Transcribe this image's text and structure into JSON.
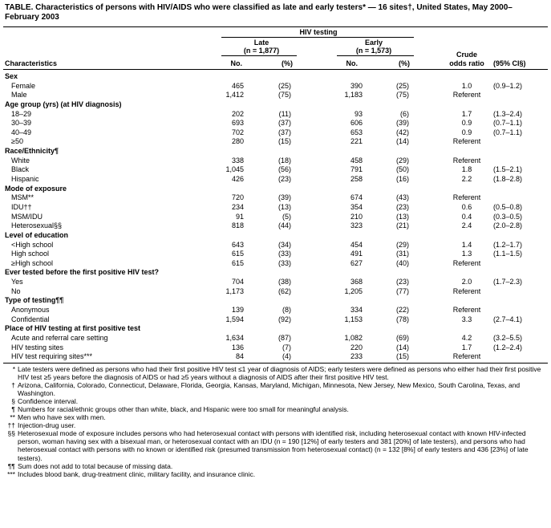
{
  "title": "TABLE. Characteristics of persons with HIV/AIDS who were classified as late and early testers* — 16 sites†, United States, May 2000–February 2003",
  "header": {
    "group": "HIV testing",
    "late": "Late",
    "late_n": "(n = 1,877)",
    "early": "Early",
    "early_n": "(n = 1,573)",
    "crude": "Crude",
    "odds_ratio": "odds ratio",
    "characteristics": "Characteristics",
    "late_no": "No.",
    "late_pct": "(%)",
    "early_no": "No.",
    "early_pct": "(%)",
    "ci": "(95% CI§)"
  },
  "sections": [
    {
      "title": "Sex",
      "rows": [
        [
          "Female",
          "465",
          "(25)",
          "390",
          "(25)",
          "1.0",
          "(0.9–1.2)"
        ],
        [
          "Male",
          "1,412",
          "(75)",
          "1,183",
          "(75)",
          "Referent"
        ]
      ]
    },
    {
      "title": "Age group (yrs) (at HIV diagnosis)",
      "rows": [
        [
          "18–29",
          "202",
          "(11)",
          "93",
          "(6)",
          "1.7",
          "(1.3–2.4)"
        ],
        [
          "30–39",
          "693",
          "(37)",
          "606",
          "(39)",
          "0.9",
          "(0.7–1.1)"
        ],
        [
          "40–49",
          "702",
          "(37)",
          "653",
          "(42)",
          "0.9",
          "(0.7–1.1)"
        ],
        [
          "≥50",
          "280",
          "(15)",
          "221",
          "(14)",
          "Referent"
        ]
      ]
    },
    {
      "title": "Race/Ethnicity¶",
      "rows": [
        [
          "White",
          "338",
          "(18)",
          "458",
          "(29)",
          "Referent"
        ],
        [
          "Black",
          "1,045",
          "(56)",
          "791",
          "(50)",
          "1.8",
          "(1.5–2.1)"
        ],
        [
          "Hispanic",
          "426",
          "(23)",
          "258",
          "(16)",
          "2.2",
          "(1.8–2.8)"
        ]
      ]
    },
    {
      "title": "Mode of exposure",
      "rows": [
        [
          "MSM**",
          "720",
          "(39)",
          "674",
          "(43)",
          "Referent"
        ],
        [
          "IDU††",
          "234",
          "(13)",
          "354",
          "(23)",
          "0.6",
          "(0.5–0.8)"
        ],
        [
          "MSM/IDU",
          "91",
          "(5)",
          "210",
          "(13)",
          "0.4",
          "(0.3–0.5)"
        ],
        [
          "Heterosexual§§",
          "818",
          "(44)",
          "323",
          "(21)",
          "2.4",
          "(2.0–2.8)"
        ]
      ]
    },
    {
      "title": "Level of education",
      "rows": [
        [
          "<High school",
          "643",
          "(34)",
          "454",
          "(29)",
          "1.4",
          "(1.2–1.7)"
        ],
        [
          "High school",
          "615",
          "(33)",
          "491",
          "(31)",
          "1.3",
          "(1.1–1.5)"
        ],
        [
          "≥High school",
          "615",
          "(33)",
          "627",
          "(40)",
          "Referent"
        ]
      ]
    },
    {
      "title": "Ever tested before the first positive HIV test?",
      "rows": [
        [
          "Yes",
          "704",
          "(38)",
          "368",
          "(23)",
          "2.0",
          "(1.7–2.3)"
        ],
        [
          "No",
          "1,173",
          "(62)",
          "1,205",
          "(77)",
          "Referent"
        ]
      ]
    },
    {
      "title": "Type of testing¶¶",
      "rows": [
        [
          "Anonymous",
          "139",
          "(8)",
          "334",
          "(22)",
          "Referent"
        ],
        [
          "Confidential",
          "1,594",
          "(92)",
          "1,153",
          "(78)",
          "3.3",
          "(2.7–4.1)"
        ]
      ]
    },
    {
      "title": "Place of HIV testing at first positive test",
      "rows": [
        [
          "Acute and referral care setting",
          "1,634",
          "(87)",
          "1,082",
          "(69)",
          "4.2",
          "(3.2–5.5)"
        ],
        [
          "HIV testing sites",
          "136",
          "(7)",
          "220",
          "(14)",
          "1.7",
          "(1.2–2.4)"
        ],
        [
          "HIV test requiring sites***",
          "84",
          "(4)",
          "233",
          "(15)",
          "Referent"
        ]
      ]
    }
  ],
  "footnotes": [
    [
      "*",
      "Late testers were defined as persons who had their first positive HIV test ≤1 year of diagnosis of AIDS; early testers were defined as persons who either had their first positive HIV test ≥5 years before the diagnosis of AIDS or had ≥5 years without a diagnosis of AIDS after their first positive HIV test."
    ],
    [
      "†",
      "Arizona, California, Colorado, Connecticut, Delaware, Florida, Georgia, Kansas, Maryland, Michigan, Minnesota, New Jersey, New Mexico, South Carolina, Texas, and Washington."
    ],
    [
      "§",
      "Confidence interval."
    ],
    [
      "¶",
      "Numbers for racial/ethnic groups other than white, black, and Hispanic were too small for meaningful analysis."
    ],
    [
      "**",
      "Men who have sex with men."
    ],
    [
      "††",
      "Injection-drug user."
    ],
    [
      "§§",
      "Heterosexual mode of exposure includes persons who had heterosexual contact with persons with identified risk, including heterosexual contact with known HIV-infected person, woman having sex with a bisexual man, or heterosexual contact with an IDU (n = 190 [12%] of early testers and 381 [20%] of late testers), and persons who had heterosexual contact with persons with no known or identified risk (presumed transmission from heterosexual contact) (n = 132 [8%] of early testers and 436 [23%] of late testers)."
    ],
    [
      "¶¶",
      "Sum does not add to total because of missing data."
    ],
    [
      "***",
      "Includes blood bank, drug-treatment clinic, military facility, and insurance clinic."
    ]
  ]
}
